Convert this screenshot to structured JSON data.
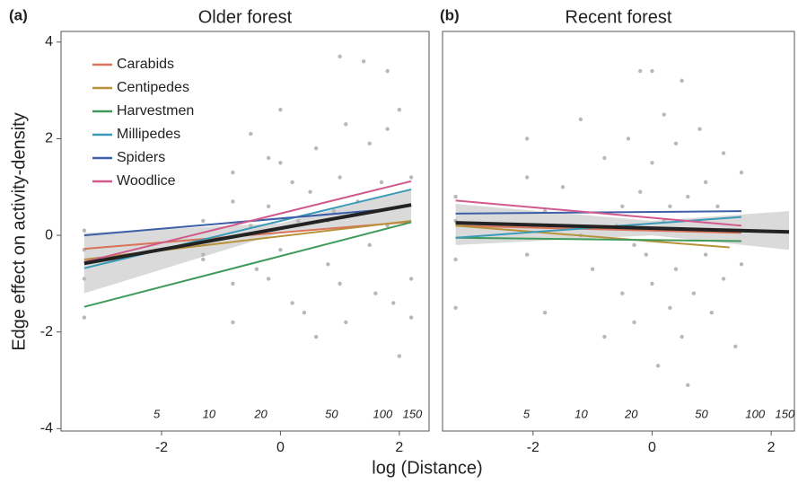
{
  "ylabel": "Edge effect on activity-density",
  "xlabel": "log (Distance)",
  "chart_data": [
    {
      "type": "scatter",
      "panel": "(a)",
      "title": "Older forest",
      "xlim": [
        -3.69,
        2.5
      ],
      "ylim": [
        -4.05,
        4.22
      ],
      "xticks": [
        -2,
        0,
        2
      ],
      "yticks": [
        -4,
        -2,
        0,
        2,
        4
      ],
      "top_ticks": [
        {
          "value": -2.08,
          "label": "5"
        },
        {
          "value": -1.2,
          "label": "10"
        },
        {
          "value": -0.33,
          "label": "20"
        },
        {
          "value": 0.86,
          "label": "50"
        },
        {
          "value": 1.72,
          "label": "100"
        },
        {
          "value": 2.22,
          "label": "150"
        }
      ],
      "points": {
        "color": "#b8b8b8",
        "x": [
          -3.3,
          -3.3,
          -3.3,
          -3.3,
          -1.3,
          -1.3,
          -1.3,
          -0.8,
          -0.8,
          -0.8,
          -0.8,
          -0.5,
          -0.5,
          -0.4,
          -0.2,
          -0.2,
          -0.2,
          0,
          0,
          0,
          0.2,
          0.2,
          0.3,
          0.4,
          0.5,
          0.6,
          0.6,
          0.8,
          0.8,
          1.0,
          1.0,
          1.0,
          1.1,
          1.1,
          1.3,
          1.4,
          1.5,
          1.5,
          1.6,
          1.8,
          1.8,
          1.8,
          1.9,
          2.0,
          2.0,
          2.2,
          2.2,
          2.2,
          1.7,
          0.9
        ],
        "y": [
          -0.3,
          -1.7,
          0.1,
          -0.9,
          -0.4,
          0.3,
          -0.5,
          1.3,
          -1.8,
          -1.0,
          0.7,
          0.2,
          2.1,
          -0.7,
          1.6,
          -0.9,
          0.6,
          1.5,
          -0.3,
          2.6,
          1.1,
          -1.4,
          0.3,
          -1.6,
          0.9,
          -2.1,
          1.8,
          0.3,
          -0.6,
          3.7,
          1.2,
          -1.0,
          2.3,
          -1.8,
          0.7,
          3.6,
          1.9,
          -0.2,
          -1.2,
          3.4,
          2.2,
          0.2,
          -1.4,
          -2.5,
          2.6,
          1.2,
          -0.9,
          -1.7,
          1.1,
          0.5
        ]
      },
      "band": {
        "color": "#d4d4d4",
        "x": [
          -3.3,
          0,
          2.2
        ],
        "lower": [
          -1.2,
          0.05,
          0.3
        ],
        "upper": [
          0.05,
          0.25,
          0.95
        ]
      },
      "series": [
        {
          "name": "Carabids",
          "color": "#d9735a",
          "x": [
            -3.3,
            2.2
          ],
          "values": [
            -0.28,
            0.28
          ]
        },
        {
          "name": "Centipedes",
          "color": "#b8923a",
          "x": [
            -3.3,
            2.2
          ],
          "values": [
            -0.5,
            0.3
          ]
        },
        {
          "name": "Harvestmen",
          "color": "#3f9a5a",
          "x": [
            -3.3,
            2.2
          ],
          "values": [
            -1.48,
            0.27
          ]
        },
        {
          "name": "Millipedes",
          "color": "#3a9ab8",
          "x": [
            -3.3,
            2.2
          ],
          "values": [
            -0.68,
            0.95
          ]
        },
        {
          "name": "Spiders",
          "color": "#3e5fa8",
          "x": [
            -3.3,
            1.9
          ],
          "values": [
            0.0,
            0.55
          ]
        },
        {
          "name": "Woodlice",
          "color": "#d05a8c",
          "x": [
            -3.3,
            2.2
          ],
          "values": [
            -0.55,
            1.12
          ]
        }
      ],
      "fit": {
        "color": "#222222",
        "x": [
          -3.3,
          2.2
        ],
        "values": [
          -0.58,
          0.63
        ]
      }
    },
    {
      "type": "scatter",
      "panel": "(b)",
      "title": "Recent forest",
      "xlim": [
        -3.52,
        2.39
      ],
      "ylim": [
        -4.05,
        4.22
      ],
      "xticks": [
        -2,
        0,
        2
      ],
      "top_ticks": [
        {
          "value": -2.11,
          "label": "5"
        },
        {
          "value": -1.19,
          "label": "10"
        },
        {
          "value": -0.35,
          "label": "20"
        },
        {
          "value": 0.83,
          "label": "50"
        },
        {
          "value": 1.73,
          "label": "100"
        },
        {
          "value": 2.23,
          "label": "150"
        }
      ],
      "points": {
        "color": "#b8b8b8",
        "x": [
          -3.3,
          -3.3,
          -3.3,
          -3.3,
          -2.1,
          -2.1,
          -2.1,
          -1.8,
          -1.8,
          -1.2,
          -1.2,
          -1.0,
          -0.8,
          -0.8,
          -0.5,
          -0.5,
          -0.4,
          -0.3,
          -0.2,
          -0.2,
          -0.1,
          0,
          0,
          0,
          0.1,
          0.2,
          0.2,
          0.3,
          0.4,
          0.4,
          0.5,
          0.5,
          0.6,
          0.7,
          0.8,
          0.9,
          0.9,
          0.6,
          1.0,
          1.1,
          1.2,
          1.2,
          1.3,
          1.4,
          1.5,
          1.5,
          -0.6,
          -1.5,
          0.3,
          -0.3
        ],
        "y": [
          0.8,
          -0.5,
          -1.5,
          0.3,
          2.0,
          -0.4,
          1.2,
          0.5,
          -1.6,
          2.4,
          0.0,
          -0.7,
          1.6,
          -2.1,
          0.6,
          -1.2,
          2.0,
          -1.8,
          3.4,
          0.9,
          -0.4,
          1.5,
          -1.0,
          3.4,
          -2.7,
          0.3,
          2.5,
          -1.5,
          -0.7,
          1.9,
          3.2,
          -2.1,
          0.8,
          -1.2,
          2.2,
          -0.4,
          1.1,
          -3.1,
          -1.6,
          0.6,
          1.7,
          -0.9,
          0.1,
          -2.3,
          1.3,
          -0.6,
          0.2,
          1.0,
          0.6,
          -0.2
        ]
      },
      "band": {
        "color": "#d4d4d4",
        "x": [
          -3.3,
          0,
          2.3
        ],
        "lower": [
          -0.2,
          0.0,
          -0.3
        ],
        "upper": [
          0.65,
          0.3,
          0.5
        ]
      },
      "series": [
        {
          "color": "#d9735a",
          "x": [
            -3.3,
            1.5
          ],
          "values": [
            0.2,
            0.05
          ]
        },
        {
          "color": "#b8923a",
          "x": [
            -3.3,
            1.3
          ],
          "values": [
            0.2,
            -0.25
          ]
        },
        {
          "color": "#3f9a5a",
          "x": [
            -3.3,
            1.5
          ],
          "values": [
            -0.05,
            -0.12
          ]
        },
        {
          "color": "#3a9ab8",
          "x": [
            -3.3,
            1.5
          ],
          "values": [
            -0.05,
            0.38
          ]
        },
        {
          "color": "#3e5fa8",
          "x": [
            -3.3,
            1.5
          ],
          "values": [
            0.45,
            0.5
          ]
        },
        {
          "color": "#d05a8c",
          "x": [
            -3.3,
            1.5
          ],
          "values": [
            0.72,
            0.2
          ]
        }
      ],
      "fit": {
        "color": "#222222",
        "x": [
          -3.3,
          2.3
        ],
        "values": [
          0.26,
          0.07
        ]
      }
    }
  ]
}
